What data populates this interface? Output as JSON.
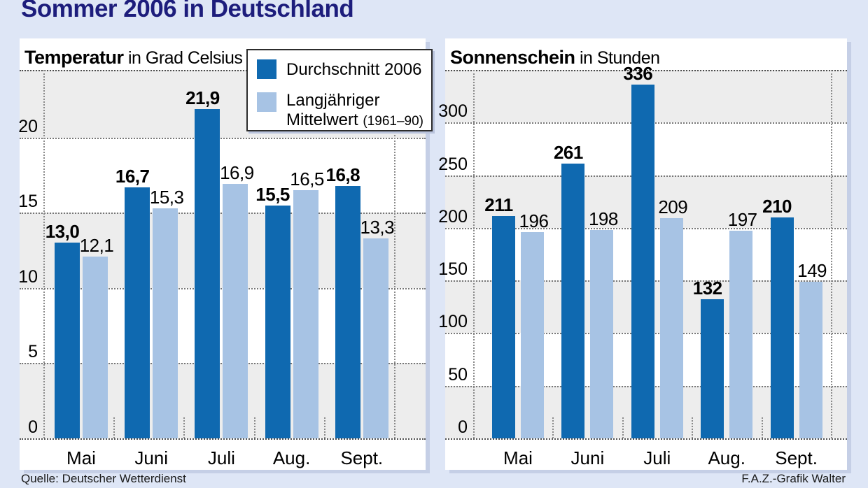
{
  "page": {
    "title": "Sommer 2006 in Deutschland",
    "source": "Quelle: Deutscher Wetterdienst",
    "credit": "F.A.Z.-Grafik Walter",
    "background": "#dee6f6",
    "title_color": "#1d1d7c"
  },
  "colors": {
    "dark": "#0f69b0",
    "light": "#a7c3e4",
    "band": "#ededed",
    "panel": "#ffffff"
  },
  "legend": {
    "series1": "Durchschnitt 2006",
    "series2_line1": "Langjähriger",
    "series2_line2": "Mittelwert",
    "series2_note": "(1961–90)"
  },
  "chart_data": [
    {
      "type": "bar",
      "title_bold": "Temperatur",
      "title_unit": " in Grad Celsius",
      "unit": "Grad Celsius",
      "categories": [
        "Mai",
        "Juni",
        "Juli",
        "Aug.",
        "Sept."
      ],
      "series": [
        {
          "name": "Durchschnitt 2006",
          "values": [
            13.0,
            16.7,
            21.9,
            15.5,
            16.8
          ],
          "labels": [
            "13,0",
            "16,7",
            "21,9",
            "15,5",
            "16,8"
          ]
        },
        {
          "name": "Langjähriger Mittelwert (1961–90)",
          "values": [
            12.1,
            15.3,
            16.9,
            16.5,
            13.3
          ],
          "labels": [
            "12,1",
            "15,3",
            "16,9",
            "16,5",
            "13,3"
          ]
        }
      ],
      "ylim": [
        0,
        24.5
      ],
      "ytick_step": 5,
      "yticks": [
        0,
        5,
        10,
        15,
        20
      ],
      "grid": "dotted-horizontal",
      "band_fill": "alternating-gray-from-zero",
      "legend_position": "top-right-of-left-chart"
    },
    {
      "type": "bar",
      "title_bold": "Sonnenschein",
      "title_unit": " in Stunden",
      "unit": "Stunden",
      "categories": [
        "Mai",
        "Juni",
        "Juli",
        "Aug.",
        "Sept."
      ],
      "series": [
        {
          "name": "Durchschnitt 2006",
          "values": [
            211,
            261,
            336,
            132,
            210
          ],
          "labels": [
            "211",
            "261",
            "336",
            "132",
            "210"
          ]
        },
        {
          "name": "Langjähriger Mittelwert (1961–90)",
          "values": [
            196,
            198,
            209,
            197,
            149
          ],
          "labels": [
            "196",
            "198",
            "209",
            "197",
            "149"
          ]
        }
      ],
      "ylim": [
        0,
        350
      ],
      "ytick_step": 50,
      "yticks": [
        0,
        50,
        100,
        150,
        200,
        250,
        300
      ],
      "grid": "dotted-horizontal",
      "band_fill": "alternating-gray-from-zero",
      "legend_position": "shared"
    }
  ]
}
